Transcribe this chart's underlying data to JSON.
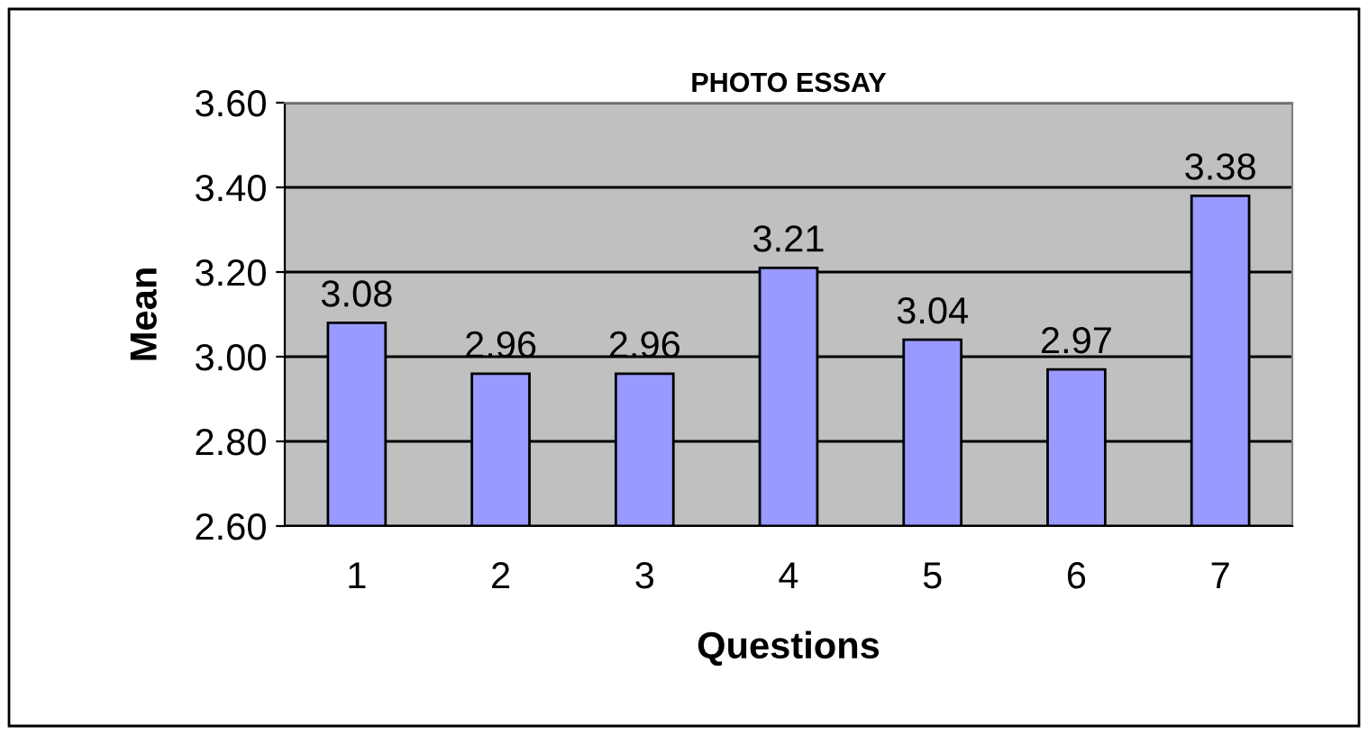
{
  "chart_data": {
    "type": "bar",
    "title": "PHOTO ESSAY",
    "xlabel": "Questions",
    "ylabel": "Mean",
    "categories": [
      "1",
      "2",
      "3",
      "4",
      "5",
      "6",
      "7"
    ],
    "values": [
      3.08,
      2.96,
      2.96,
      3.21,
      3.04,
      2.97,
      3.38
    ],
    "color": "#9999ff",
    "ylim": [
      2.6,
      3.6
    ],
    "yticks": [
      {
        "value": 2.6,
        "label": "2.60"
      },
      {
        "value": 2.8,
        "label": "2.80"
      },
      {
        "value": 3.0,
        "label": "3.00"
      },
      {
        "value": 3.2,
        "label": "3.20"
      },
      {
        "value": 3.4,
        "label": "3.40"
      },
      {
        "value": 3.6,
        "label": "3.60"
      }
    ],
    "grid": "y",
    "data_labels": true,
    "legend": false
  }
}
